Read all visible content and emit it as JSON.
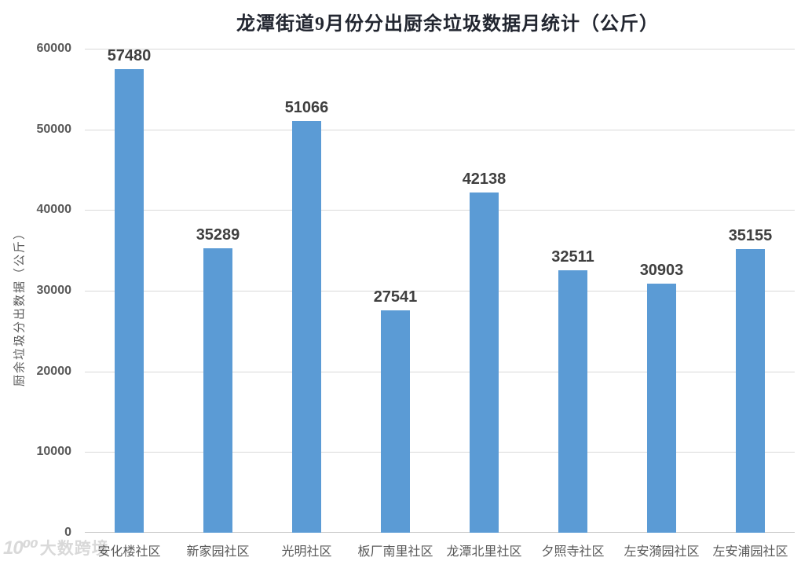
{
  "watermark": {
    "logo": "10⁰⁰",
    "text": "大数跨境"
  },
  "chart_data": {
    "type": "bar",
    "title": "龙潭街道9月份分出厨余垃圾数据月统计（公斤）",
    "ylabel": "厨余垃圾分出数据（公斤）",
    "xlabel": "",
    "categories": [
      "安化楼社区",
      "新家园社区",
      "光明社区",
      "板厂南里社区",
      "龙潭北里社区",
      "夕照寺社区",
      "左安漪园社区",
      "左安浦园社区"
    ],
    "values": [
      57480,
      35289,
      51066,
      27541,
      42138,
      32511,
      30903,
      35155
    ],
    "ylim": [
      0,
      60000
    ],
    "yticks": [
      0,
      10000,
      20000,
      30000,
      40000,
      50000,
      60000
    ],
    "grid": true,
    "legend": "none",
    "colors": {
      "bar": "#5b9bd5",
      "value_label": "#3f3f3f",
      "axis_text": "#595959",
      "gridline": "#d9d9d9",
      "axis_line": "#c6c6c6",
      "title": "#222630",
      "watermark": "#d9d9d9"
    }
  }
}
